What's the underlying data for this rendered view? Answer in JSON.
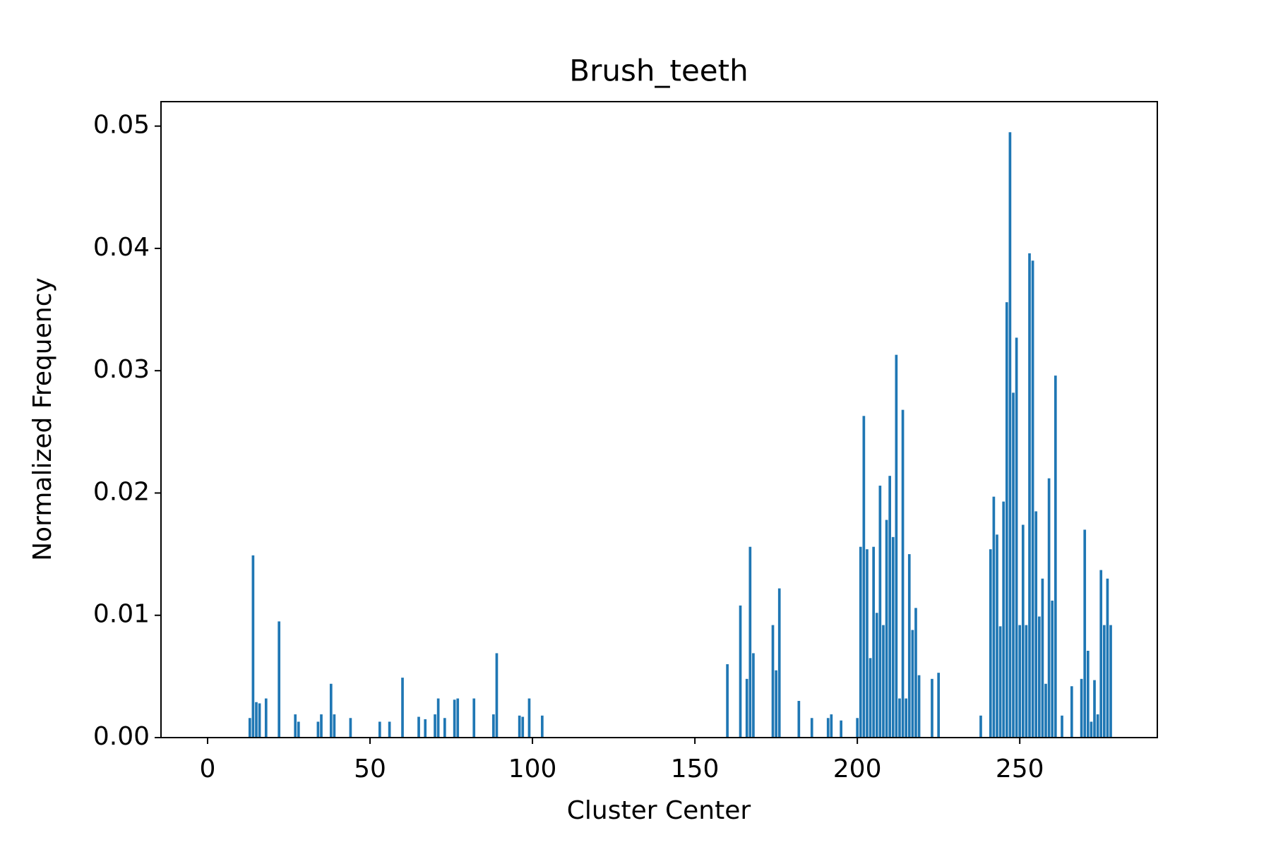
{
  "chart_data": {
    "type": "bar",
    "title": "Brush_teeth",
    "xlabel": "Cluster Center",
    "ylabel": "Normalized Frequency",
    "color": "#1f77b4",
    "x": [
      13,
      14,
      15,
      16,
      18,
      22,
      27,
      28,
      34,
      35,
      38,
      39,
      44,
      53,
      56,
      60,
      65,
      67,
      70,
      71,
      73,
      76,
      77,
      82,
      88,
      89,
      96,
      97,
      99,
      103,
      160,
      164,
      166,
      167,
      168,
      174,
      175,
      176,
      182,
      186,
      191,
      192,
      195,
      200,
      201,
      202,
      203,
      204,
      205,
      206,
      207,
      208,
      209,
      210,
      211,
      212,
      213,
      214,
      215,
      216,
      217,
      218,
      219,
      223,
      225,
      238,
      241,
      242,
      243,
      244,
      245,
      246,
      247,
      248,
      249,
      250,
      251,
      252,
      253,
      254,
      255,
      256,
      257,
      258,
      259,
      260,
      261,
      263,
      266,
      269,
      270,
      271,
      272,
      273,
      274,
      275,
      276,
      277,
      278
    ],
    "values": [
      0.0016,
      0.0149,
      0.0029,
      0.0028,
      0.0032,
      0.0095,
      0.0019,
      0.0013,
      0.0013,
      0.0019,
      0.0044,
      0.0019,
      0.0016,
      0.0013,
      0.0013,
      0.0049,
      0.0017,
      0.0015,
      0.0019,
      0.0032,
      0.0016,
      0.0031,
      0.0032,
      0.0032,
      0.0019,
      0.0069,
      0.0018,
      0.0017,
      0.0032,
      0.0018,
      0.006,
      0.0108,
      0.0048,
      0.0156,
      0.0069,
      0.0092,
      0.0055,
      0.0122,
      0.003,
      0.0016,
      0.0016,
      0.0019,
      0.0014,
      0.0016,
      0.0156,
      0.0263,
      0.0154,
      0.0065,
      0.0156,
      0.0102,
      0.0206,
      0.0092,
      0.0178,
      0.0214,
      0.0164,
      0.0313,
      0.0032,
      0.0268,
      0.0032,
      0.015,
      0.0088,
      0.0106,
      0.0051,
      0.0048,
      0.0053,
      0.0018,
      0.0154,
      0.0197,
      0.0166,
      0.0091,
      0.0193,
      0.0356,
      0.0495,
      0.0282,
      0.0327,
      0.0092,
      0.0174,
      0.0092,
      0.0396,
      0.039,
      0.0185,
      0.0099,
      0.013,
      0.0044,
      0.0212,
      0.0112,
      0.0296,
      0.0018,
      0.0042,
      0.0048,
      0.017,
      0.0071,
      0.0013,
      0.0047,
      0.0019,
      0.0137,
      0.0092,
      0.013,
      0.0092
    ],
    "bar_width": 0.8,
    "xlim": [
      -14.34,
      292.34
    ],
    "xticks": [
      0,
      50,
      100,
      150,
      200,
      250
    ],
    "ylim": [
      0,
      0.052
    ],
    "yticks": [
      {
        "value": 0,
        "label": "0.00"
      },
      {
        "value": 0.01,
        "label": "0.01"
      },
      {
        "value": 0.02,
        "label": "0.02"
      },
      {
        "value": 0.03,
        "label": "0.03"
      },
      {
        "value": 0.04,
        "label": "0.04"
      },
      {
        "value": 0.05,
        "label": "0.05"
      }
    ]
  }
}
